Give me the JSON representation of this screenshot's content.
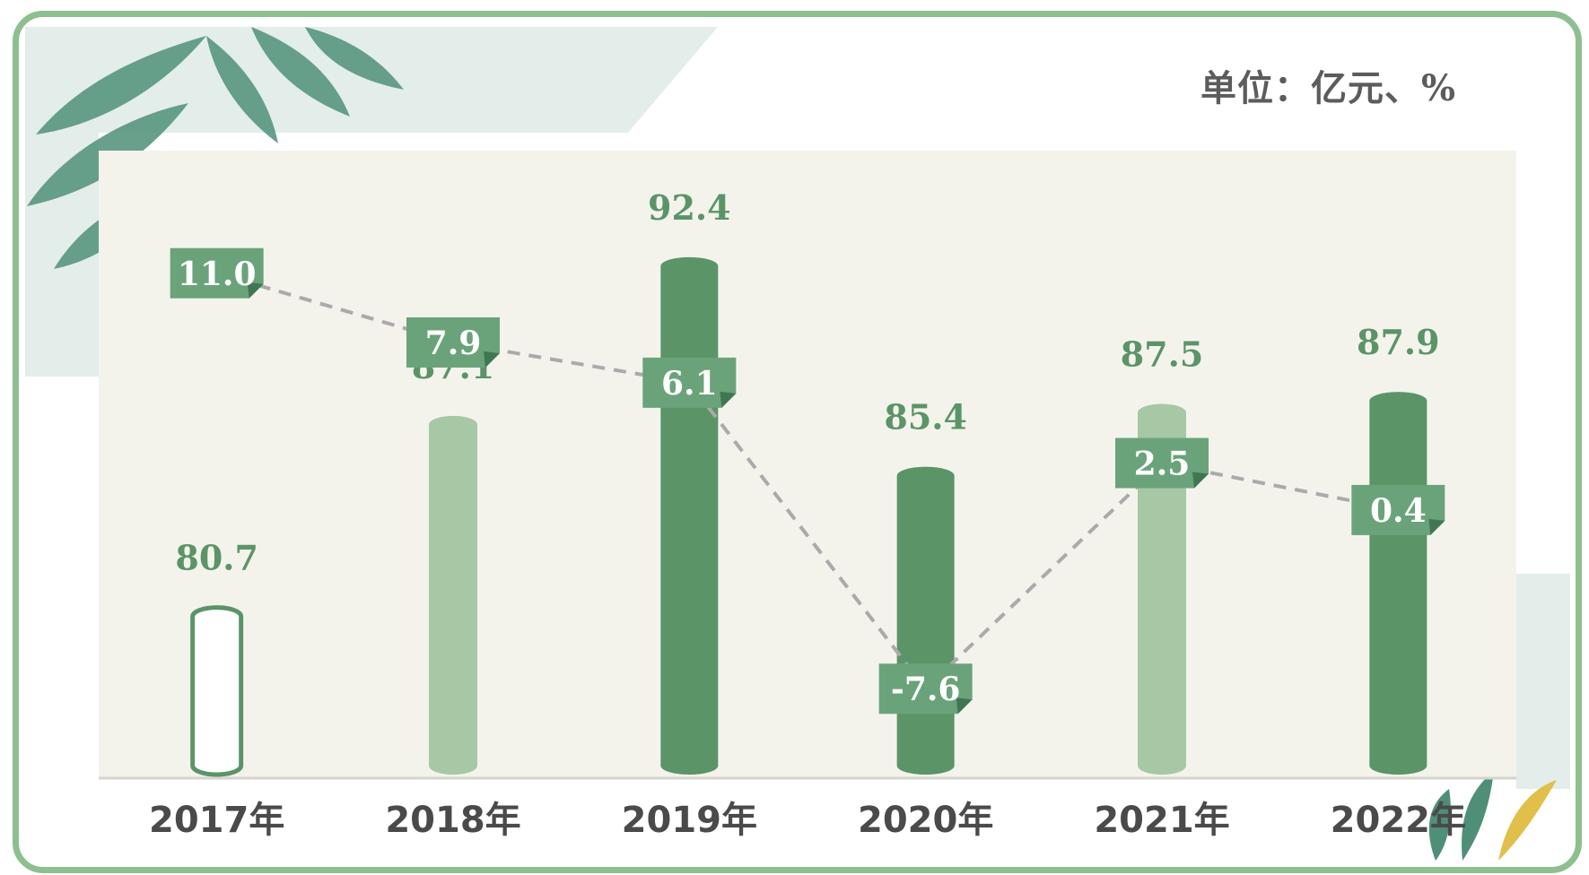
{
  "unit_label": "单位：亿元、%",
  "colors": {
    "frame": "#8ebf8f",
    "dark_bar": "#5b9467",
    "light_bar": "#a6c8a4",
    "value_text": "#5b9467",
    "growth_box": "#6aa37a",
    "year_text": "#4a4a4a",
    "dashed_line": "#aaaaaa"
  },
  "chart_data": {
    "type": "bar",
    "categories": [
      "2017年",
      "2018年",
      "2019年",
      "2020年",
      "2021年",
      "2022年"
    ],
    "series": [
      {
        "values": [
          80.7,
          87.1,
          92.4,
          85.4,
          87.5,
          87.9
        ],
        "styles": [
          "outline",
          "light",
          "dark",
          "dark",
          "light",
          "dark"
        ]
      },
      {
        "type": "line",
        "values": [
          11.0,
          7.9,
          6.1,
          -7.6,
          2.5,
          0.4
        ],
        "labels": [
          "11.0",
          "7.9",
          "6.1",
          "-7.6",
          "2.5",
          "0.4"
        ],
        "line_style": "dashed"
      }
    ],
    "value_labels": [
      "80.7",
      "87.1",
      "92.4",
      "85.4",
      "87.5",
      "87.9"
    ],
    "legend": "none",
    "grid": false
  }
}
